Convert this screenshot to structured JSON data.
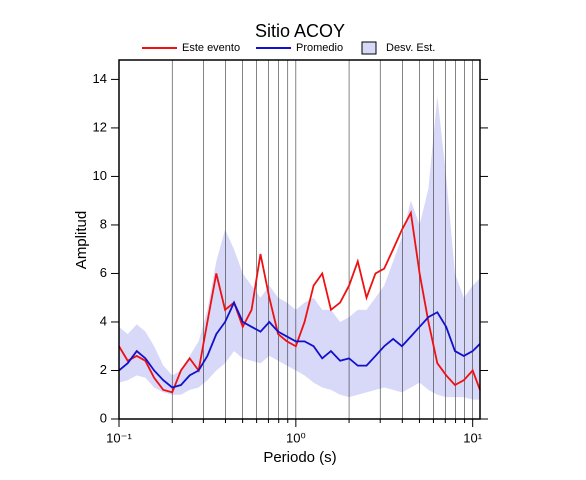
{
  "chart_data": {
    "type": "line",
    "title": "Sitio ACOY",
    "xlabel": "Periodo (s)",
    "ylabel": "Amplitud",
    "xscale": "log",
    "grid": "x",
    "xlim": [
      0.1,
      11
    ],
    "ylim": [
      0,
      14.8
    ],
    "xticks": [
      {
        "value": 0.1,
        "label": "10⁻¹"
      },
      {
        "value": 1,
        "label": "10⁰"
      },
      {
        "value": 10,
        "label": "10¹"
      }
    ],
    "xgrid": [
      0.2,
      0.3,
      0.4,
      0.5,
      0.6,
      0.7,
      0.8,
      0.9,
      2,
      3,
      4,
      5,
      6,
      7,
      8,
      9
    ],
    "yticks": [
      0,
      2,
      4,
      6,
      8,
      10,
      12,
      14
    ],
    "x": [
      0.1,
      0.112,
      0.126,
      0.141,
      0.158,
      0.178,
      0.2,
      0.224,
      0.251,
      0.282,
      0.316,
      0.355,
      0.398,
      0.447,
      0.501,
      0.562,
      0.631,
      0.708,
      0.794,
      0.891,
      1,
      1.12,
      1.26,
      1.41,
      1.58,
      1.78,
      2,
      2.24,
      2.51,
      2.82,
      3.16,
      3.55,
      3.98,
      4.47,
      5.01,
      5.62,
      6.31,
      7.08,
      7.94,
      8.91,
      10,
      11
    ],
    "band": {
      "name": "Desv. Est.",
      "color": "#d8d8f8",
      "upper": [
        3.8,
        3.5,
        3.9,
        3.6,
        3.0,
        2.2,
        1.8,
        2.0,
        2.6,
        3.2,
        4.5,
        6.5,
        7.8,
        7.0,
        6.0,
        5.5,
        5.0,
        5.5,
        5.0,
        4.8,
        4.5,
        4.8,
        5.0,
        4.5,
        4.5,
        4.0,
        4.2,
        4.5,
        4.5,
        5.0,
        5.5,
        6.5,
        7.5,
        9.0,
        8.0,
        9.5,
        13.3,
        10.0,
        6.0,
        5.0,
        5.5,
        5.8
      ],
      "lower": [
        1.5,
        1.6,
        1.8,
        1.7,
        1.3,
        1.1,
        1.0,
        1.0,
        1.2,
        1.3,
        1.6,
        2.0,
        2.3,
        2.8,
        2.5,
        2.4,
        2.3,
        2.6,
        2.4,
        2.2,
        2.0,
        1.8,
        1.5,
        1.3,
        1.2,
        1.0,
        0.9,
        1.0,
        1.1,
        1.2,
        1.3,
        1.2,
        1.1,
        1.3,
        1.5,
        1.2,
        1.0,
        0.9,
        0.9,
        0.9,
        0.8,
        0.8
      ]
    },
    "series": [
      {
        "name": "Este evento",
        "color": "#ee1111",
        "values": [
          3.0,
          2.4,
          2.6,
          2.4,
          1.7,
          1.2,
          1.1,
          2.0,
          2.5,
          2.0,
          4.0,
          6.0,
          4.5,
          4.8,
          3.8,
          4.5,
          6.8,
          5.0,
          3.5,
          3.2,
          3.0,
          4.0,
          5.5,
          6.0,
          4.5,
          4.8,
          5.5,
          6.5,
          5.0,
          6.0,
          6.2,
          7.0,
          7.8,
          8.5,
          6.0,
          4.0,
          2.3,
          1.8,
          1.4,
          1.6,
          2.0,
          1.2
        ]
      },
      {
        "name": "Promedio",
        "color": "#1111cc",
        "values": [
          2.0,
          2.3,
          2.8,
          2.5,
          2.0,
          1.6,
          1.3,
          1.4,
          1.8,
          2.0,
          2.6,
          3.5,
          4.0,
          4.8,
          4.0,
          3.8,
          3.6,
          4.0,
          3.6,
          3.4,
          3.2,
          3.2,
          3.0,
          2.5,
          2.8,
          2.4,
          2.5,
          2.2,
          2.2,
          2.6,
          3.0,
          3.3,
          3.0,
          3.4,
          3.8,
          4.2,
          4.4,
          3.8,
          2.8,
          2.6,
          2.8,
          3.1
        ]
      }
    ]
  }
}
